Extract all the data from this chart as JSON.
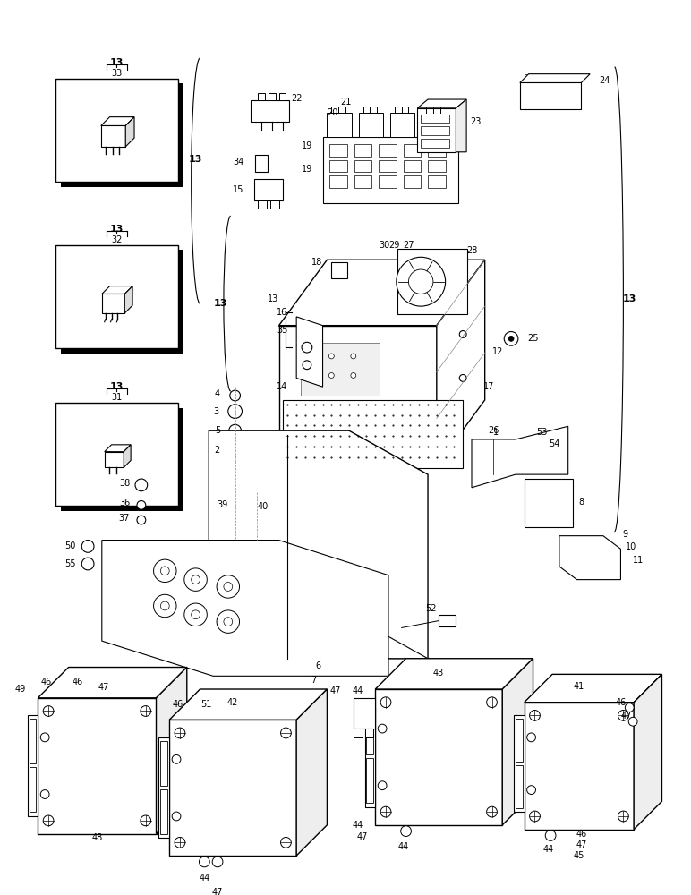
{
  "bg_color": "#ffffff",
  "figsize": [
    7.72,
    10.0
  ],
  "dpi": 100
}
